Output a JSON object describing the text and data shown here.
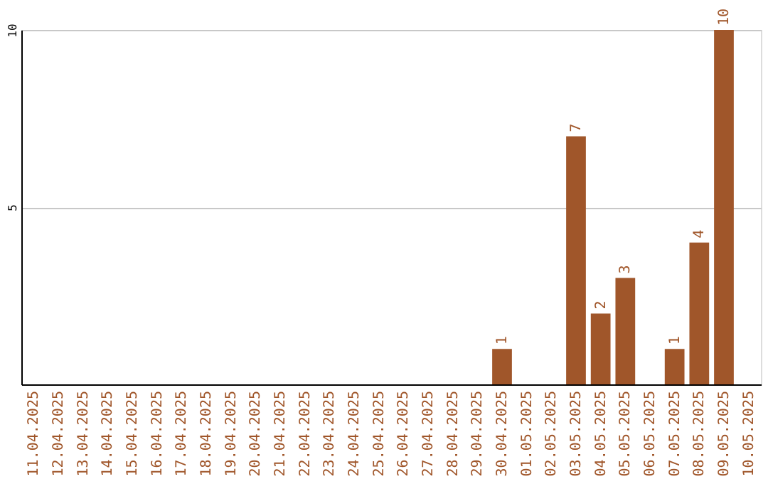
{
  "chart_data": {
    "type": "bar",
    "categories": [
      "11.04.2025",
      "12.04.2025",
      "13.04.2025",
      "14.04.2025",
      "15.04.2025",
      "16.04.2025",
      "17.04.2025",
      "18.04.2025",
      "19.04.2025",
      "20.04.2025",
      "21.04.2025",
      "22.04.2025",
      "23.04.2025",
      "24.04.2025",
      "25.04.2025",
      "26.04.2025",
      "27.04.2025",
      "28.04.2025",
      "29.04.2025",
      "30.04.2025",
      "01.05.2025",
      "02.05.2025",
      "03.05.2025",
      "04.05.2025",
      "05.05.2025",
      "06.05.2025",
      "07.05.2025",
      "08.05.2025",
      "09.05.2025",
      "10.05.2025"
    ],
    "values": [
      0,
      0,
      0,
      0,
      0,
      0,
      0,
      0,
      0,
      0,
      0,
      0,
      0,
      0,
      0,
      0,
      0,
      0,
      0,
      1,
      0,
      0,
      7,
      2,
      3,
      0,
      1,
      4,
      10,
      0
    ],
    "value_labels": [
      null,
      null,
      null,
      null,
      null,
      null,
      null,
      null,
      null,
      null,
      null,
      null,
      null,
      null,
      null,
      null,
      null,
      null,
      null,
      "1",
      null,
      null,
      "7",
      "2",
      "3",
      null,
      "1",
      "4",
      "10",
      null
    ],
    "color": "#a0562a",
    "ylim": [
      0,
      10
    ],
    "yticks": [
      5,
      10
    ],
    "grid": "y"
  }
}
